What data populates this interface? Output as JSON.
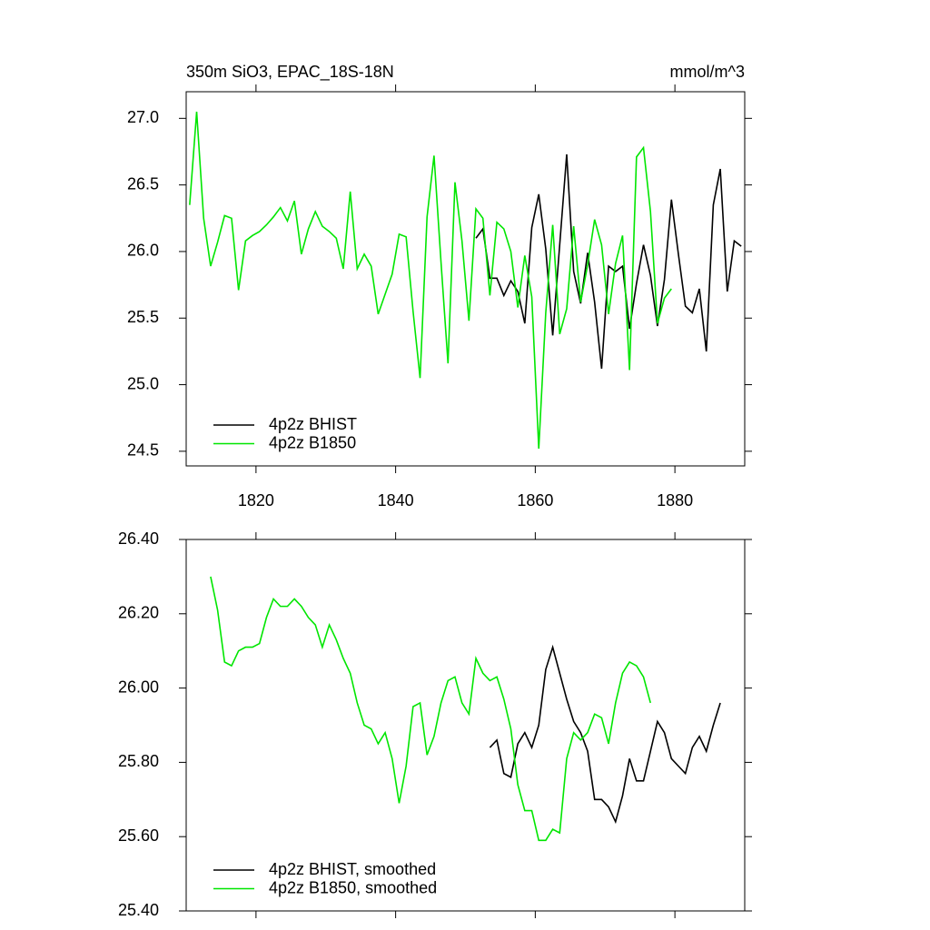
{
  "chart_data": [
    {
      "type": "line",
      "title": "350m SiO3, EPAC_18S-18N",
      "subtitle": "mmol/m^3",
      "xlim": [
        1810,
        1890
      ],
      "xticks": [
        1820,
        1840,
        1860,
        1880
      ],
      "ylim": [
        24.39,
        27.2
      ],
      "yticks": [
        {
          "value": 24.5,
          "label": "24.5"
        },
        {
          "value": 25,
          "label": "25.0"
        },
        {
          "value": 25.5,
          "label": "25.5"
        },
        {
          "value": 26,
          "label": "26.0"
        },
        {
          "value": 26.5,
          "label": "26.5"
        },
        {
          "value": 27,
          "label": "27.0"
        }
      ],
      "legend": "lower left",
      "series": [
        {
          "name": "4p2z BHIST",
          "color": "#000000",
          "x": [
            1851.5,
            1852.5,
            1853.5,
            1854.5,
            1855.5,
            1856.5,
            1857.5,
            1858.5,
            1859.5,
            1860.5,
            1861.5,
            1862.5,
            1863.5,
            1864.5,
            1865.5,
            1866.5,
            1867.5,
            1868.5,
            1869.5,
            1870.5,
            1871.5,
            1872.5,
            1873.5,
            1874.5,
            1875.5,
            1876.5,
            1877.5,
            1878.5,
            1879.5,
            1880.5,
            1881.5,
            1882.5,
            1883.5,
            1884.5,
            1885.5,
            1886.5,
            1887.5,
            1888.5,
            1889.5
          ],
          "values": [
            26.1,
            26.17,
            25.8,
            25.8,
            25.67,
            25.78,
            25.7,
            25.46,
            26.18,
            26.43,
            26.02,
            25.37,
            26.05,
            26.73,
            25.85,
            25.61,
            25.99,
            25.62,
            25.12,
            25.89,
            25.85,
            25.89,
            25.42,
            25.76,
            26.05,
            25.82,
            25.44,
            25.79,
            26.39,
            25.98,
            25.59,
            25.54,
            25.72,
            25.25,
            26.35,
            26.62,
            25.7,
            26.08,
            26.04
          ]
        },
        {
          "name": "4p2z B1850",
          "color": "#00e600",
          "x": [
            1810.5,
            1811.5,
            1812.5,
            1813.5,
            1814.5,
            1815.5,
            1816.5,
            1817.5,
            1818.5,
            1819.5,
            1820.5,
            1821.5,
            1822.5,
            1823.5,
            1824.5,
            1825.5,
            1826.5,
            1827.5,
            1828.5,
            1829.5,
            1830.5,
            1831.5,
            1832.5,
            1833.5,
            1834.5,
            1835.5,
            1836.5,
            1837.5,
            1838.5,
            1839.5,
            1840.5,
            1841.5,
            1842.5,
            1843.5,
            1844.5,
            1845.5,
            1846.5,
            1847.5,
            1848.5,
            1849.5,
            1850.5,
            1851.5,
            1852.5,
            1853.5,
            1854.5,
            1855.5,
            1856.5,
            1857.5,
            1858.5,
            1859.5,
            1860.5,
            1861.5,
            1862.5,
            1863.5,
            1864.5,
            1865.5,
            1866.5,
            1867.5,
            1868.5,
            1869.5,
            1870.5,
            1871.5,
            1872.5,
            1873.5,
            1874.5,
            1875.5,
            1876.5,
            1877.5,
            1878.5,
            1879.5
          ],
          "values": [
            26.35,
            27.05,
            26.25,
            25.89,
            26.07,
            26.27,
            26.25,
            25.71,
            26.08,
            26.12,
            26.15,
            26.2,
            26.26,
            26.33,
            26.23,
            26.38,
            25.98,
            26.17,
            26.3,
            26.19,
            26.15,
            26.1,
            25.87,
            26.45,
            25.87,
            25.98,
            25.89,
            25.53,
            25.68,
            25.83,
            26.13,
            26.11,
            25.55,
            25.05,
            26.26,
            26.72,
            25.92,
            25.16,
            26.52,
            26.08,
            25.48,
            26.32,
            26.25,
            25.67,
            26.22,
            26.17,
            26.0,
            25.58,
            25.97,
            25.66,
            24.52,
            25.54,
            26.2,
            25.38,
            25.57,
            26.19,
            25.62,
            25.9,
            26.24,
            26.05,
            25.53,
            25.91,
            26.12,
            25.11,
            26.71,
            26.78,
            26.3,
            25.46,
            25.65,
            25.72
          ]
        }
      ]
    },
    {
      "type": "line",
      "xlim": [
        1810,
        1890
      ],
      "xticks": [
        1820,
        1840,
        1860,
        1880
      ],
      "ylim": [
        25.4,
        26.4
      ],
      "yticks": [
        {
          "value": 25.4,
          "label": "25.40"
        },
        {
          "value": 25.6,
          "label": "25.60"
        },
        {
          "value": 25.8,
          "label": "25.80"
        },
        {
          "value": 26,
          "label": "26.00"
        },
        {
          "value": 26.2,
          "label": "26.20"
        },
        {
          "value": 26.4,
          "label": "26.40"
        }
      ],
      "legend": "lower left",
      "series": [
        {
          "name": "4p2z BHIST, smoothed",
          "color": "#000000",
          "x": [
            1853.5,
            1854.5,
            1855.5,
            1856.5,
            1857.5,
            1858.5,
            1859.5,
            1860.5,
            1861.5,
            1862.5,
            1863.5,
            1864.5,
            1865.5,
            1866.5,
            1867.5,
            1868.5,
            1869.5,
            1870.5,
            1871.5,
            1872.5,
            1873.5,
            1874.5,
            1875.5,
            1876.5,
            1877.5,
            1878.5,
            1879.5,
            1880.5,
            1881.5,
            1882.5,
            1883.5,
            1884.5,
            1885.5,
            1886.5
          ],
          "values": [
            25.84,
            25.86,
            25.77,
            25.76,
            25.85,
            25.88,
            25.84,
            25.9,
            26.05,
            26.11,
            26.04,
            25.97,
            25.91,
            25.88,
            25.83,
            25.7,
            25.7,
            25.68,
            25.64,
            25.71,
            25.81,
            25.75,
            25.75,
            25.83,
            25.91,
            25.88,
            25.81,
            25.79,
            25.77,
            25.84,
            25.87,
            25.83,
            25.9,
            25.96
          ]
        },
        {
          "name": "4p2z B1850, smoothed",
          "color": "#00e600",
          "x": [
            1813.5,
            1814.5,
            1815.5,
            1816.5,
            1817.5,
            1818.5,
            1819.5,
            1820.5,
            1821.5,
            1822.5,
            1823.5,
            1824.5,
            1825.5,
            1826.5,
            1827.5,
            1828.5,
            1829.5,
            1830.5,
            1831.5,
            1832.5,
            1833.5,
            1834.5,
            1835.5,
            1836.5,
            1837.5,
            1838.5,
            1839.5,
            1840.5,
            1841.5,
            1842.5,
            1843.5,
            1844.5,
            1845.5,
            1846.5,
            1847.5,
            1848.5,
            1849.5,
            1850.5,
            1851.5,
            1852.5,
            1853.5,
            1854.5,
            1855.5,
            1856.5,
            1857.5,
            1858.5,
            1859.5,
            1860.5,
            1861.5,
            1862.5,
            1863.5,
            1864.5,
            1865.5,
            1866.5,
            1867.5,
            1868.5,
            1869.5,
            1870.5,
            1871.5,
            1872.5,
            1873.5,
            1874.5,
            1875.5,
            1876.5
          ],
          "values": [
            26.3,
            26.21,
            26.07,
            26.06,
            26.1,
            26.11,
            26.11,
            26.12,
            26.19,
            26.24,
            26.22,
            26.22,
            26.24,
            26.22,
            26.19,
            26.17,
            26.11,
            26.17,
            26.13,
            26.08,
            26.04,
            25.96,
            25.9,
            25.89,
            25.85,
            25.88,
            25.81,
            25.69,
            25.79,
            25.95,
            25.96,
            25.82,
            25.87,
            25.96,
            26.02,
            26.03,
            25.96,
            25.93,
            26.08,
            26.04,
            26.02,
            26.03,
            25.97,
            25.89,
            25.74,
            25.67,
            25.67,
            25.59,
            25.59,
            25.62,
            25.61,
            25.81,
            25.88,
            25.86,
            25.88,
            25.93,
            25.92,
            25.85,
            25.96,
            26.04,
            26.07,
            26.06,
            26.03,
            25.96
          ]
        }
      ]
    }
  ]
}
